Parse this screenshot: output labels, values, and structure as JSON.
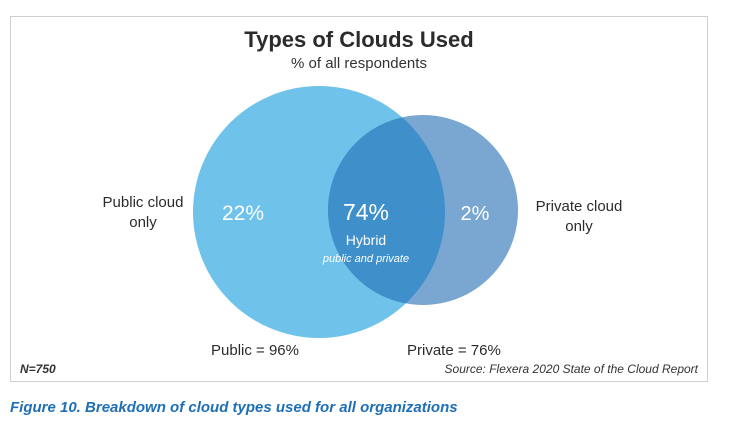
{
  "chart_data": {
    "type": "venn",
    "title": "Types of Clouds Used",
    "subtitle": "% of all respondents",
    "sets": [
      {
        "name": "Public",
        "total_label": "Public = 96%",
        "total": 96,
        "exclusive_label": "Public cloud only",
        "exclusive": 22,
        "exclusive_text": "22%",
        "color": "#6fc3ea"
      },
      {
        "name": "Private",
        "total_label": "Private = 76%",
        "total": 76,
        "exclusive_label": "Private cloud only",
        "exclusive": 2,
        "exclusive_text": "2%",
        "color": "#6b9dcd"
      }
    ],
    "intersection": {
      "value": 74,
      "value_text": "74%",
      "label": "Hybrid",
      "sublabel": "public and private",
      "color": "#3f8fca"
    },
    "sample": "N=750",
    "source": "Source: Flexera 2020 State of the Cloud Report"
  },
  "labels": {
    "public_only_line1": "Public cloud",
    "public_only_line2": "only",
    "private_only_line1": "Private cloud",
    "private_only_line2": "only"
  },
  "caption": "Figure 10. Breakdown of cloud types used for all organizations"
}
